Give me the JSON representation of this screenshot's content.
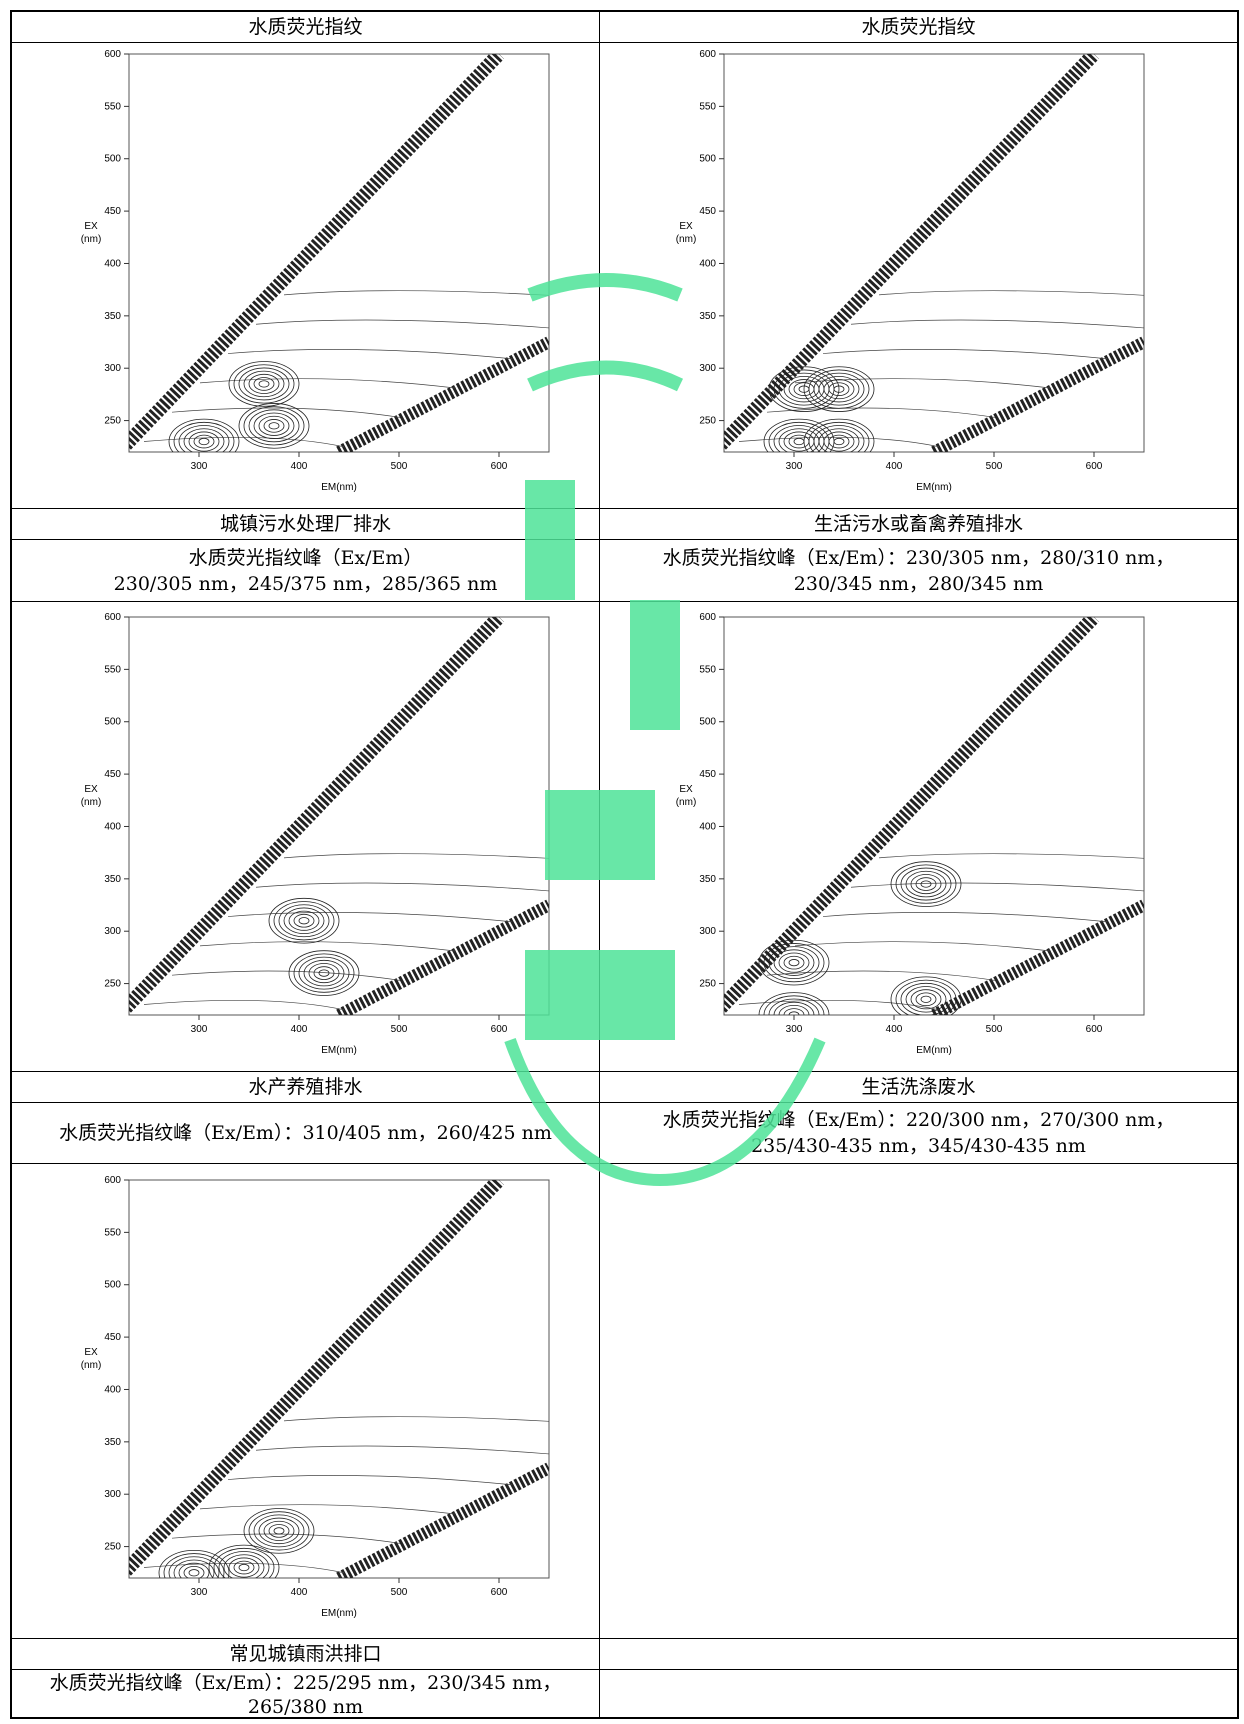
{
  "table": {
    "header_left": "水质荧光指纹",
    "header_right": "水质荧光指纹",
    "rows": [
      {
        "left": {
          "name": "城镇污水处理厂排水",
          "peaks": "水质荧光指纹峰（Ex/Em）",
          "peaks2": "230/305 nm，245/375 nm，285/365 nm"
        },
        "right": {
          "name": "生活污水或畜禽养殖排水",
          "peaks": "水质荧光指纹峰（Ex/Em）：230/305 nm，280/310 nm，",
          "peaks2": "230/345 nm，280/345 nm"
        }
      },
      {
        "left": {
          "name": "水产养殖排水",
          "peaks": "水质荧光指纹峰（Ex/Em）：310/405 nm，260/425 nm",
          "peaks2": ""
        },
        "right": {
          "name": "生活洗涤废水",
          "peaks": "水质荧光指纹峰（Ex/Em）：220/300 nm，270/300 nm，",
          "peaks2": "235/430-435 nm，345/430-435 nm"
        }
      },
      {
        "left": {
          "name": "常见城镇雨洪排口",
          "peaks": "水质荧光指纹峰（Ex/Em）：225/295 nm，230/345 nm，",
          "peaks2": "265/380 nm"
        },
        "right": {
          "name": "",
          "peaks": "",
          "peaks2": ""
        }
      }
    ]
  },
  "plot_axes": {
    "y_label_1": "EX",
    "y_label_2": "(nm)",
    "x_label": "EM(nm)",
    "y_ticks": [
      "600",
      "550",
      "500",
      "450",
      "400",
      "350",
      "300",
      "250"
    ],
    "x_ticks": [
      "300",
      "400",
      "500",
      "600"
    ]
  },
  "chart_data": [
    {
      "type": "contour",
      "xlabel": "EM(nm)",
      "ylabel": "EX (nm)",
      "xlim": [
        230,
        650
      ],
      "ylim": [
        220,
        600
      ],
      "x_ticks": [
        300,
        400,
        500,
        600
      ],
      "y_ticks": [
        250,
        300,
        350,
        400,
        450,
        500,
        550,
        600
      ],
      "peaks": [
        [
          305,
          230
        ],
        [
          375,
          245
        ],
        [
          365,
          285
        ]
      ]
    },
    {
      "type": "contour",
      "xlabel": "EM(nm)",
      "ylabel": "EX (nm)",
      "xlim": [
        230,
        650
      ],
      "ylim": [
        220,
        600
      ],
      "x_ticks": [
        300,
        400,
        500,
        600
      ],
      "y_ticks": [
        250,
        300,
        350,
        400,
        450,
        500,
        550,
        600
      ],
      "peaks": [
        [
          305,
          230
        ],
        [
          310,
          280
        ],
        [
          345,
          230
        ],
        [
          345,
          280
        ]
      ]
    },
    {
      "type": "contour",
      "xlabel": "EM(nm)",
      "ylabel": "EX (nm)",
      "xlim": [
        230,
        650
      ],
      "ylim": [
        220,
        600
      ],
      "x_ticks": [
        300,
        400,
        500,
        600
      ],
      "y_ticks": [
        250,
        300,
        350,
        400,
        450,
        500,
        550,
        600
      ],
      "peaks": [
        [
          405,
          310
        ],
        [
          425,
          260
        ]
      ]
    },
    {
      "type": "contour",
      "xlabel": "EM(nm)",
      "ylabel": "EX (nm)",
      "xlim": [
        230,
        650
      ],
      "ylim": [
        220,
        600
      ],
      "x_ticks": [
        300,
        400,
        500,
        600
      ],
      "y_ticks": [
        250,
        300,
        350,
        400,
        450,
        500,
        550,
        600
      ],
      "peaks": [
        [
          300,
          220
        ],
        [
          300,
          270
        ],
        [
          432,
          235
        ],
        [
          432,
          345
        ]
      ]
    },
    {
      "type": "contour",
      "xlabel": "EM(nm)",
      "ylabel": "EX (nm)",
      "xlim": [
        230,
        650
      ],
      "ylim": [
        220,
        600
      ],
      "x_ticks": [
        300,
        400,
        500,
        600
      ],
      "y_ticks": [
        250,
        300,
        350,
        400,
        450,
        500,
        550,
        600
      ],
      "peaks": [
        [
          295,
          225
        ],
        [
          345,
          230
        ],
        [
          380,
          265
        ]
      ]
    }
  ]
}
